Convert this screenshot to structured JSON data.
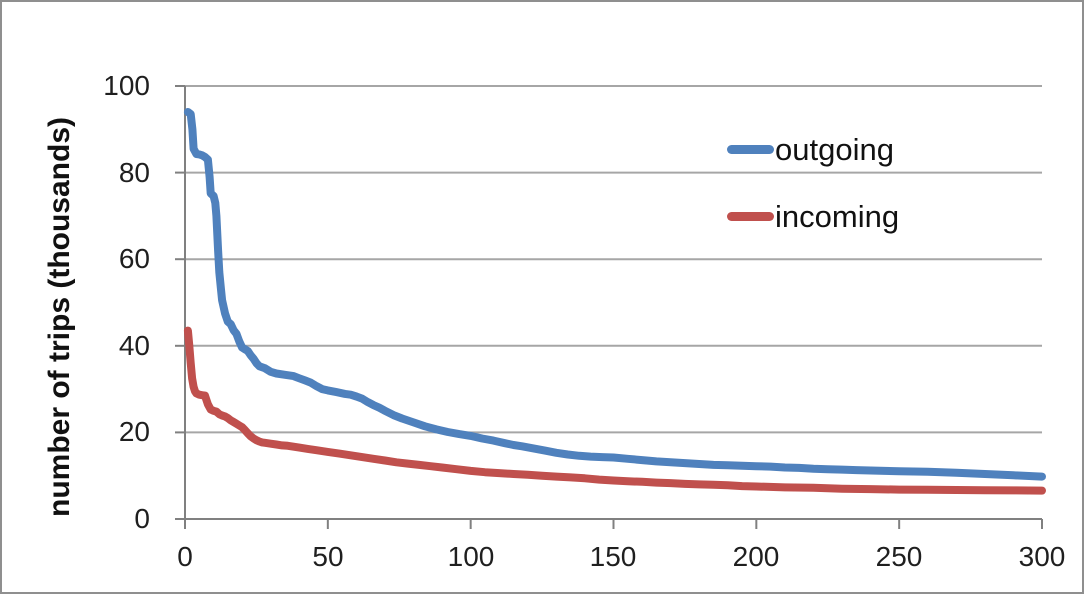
{
  "chart_data": {
    "type": "line",
    "title": "",
    "xlabel": "",
    "ylabel": "number of trips (thousands)",
    "xlim": [
      0,
      300
    ],
    "ylim": [
      0,
      100
    ],
    "x_ticks": [
      0,
      50,
      100,
      150,
      200,
      250,
      300
    ],
    "y_ticks": [
      0,
      20,
      40,
      60,
      80,
      100
    ],
    "x_tick_labels": [
      "0",
      "50",
      "100",
      "150",
      "200",
      "250",
      "300"
    ],
    "y_tick_labels_top_to_bottom": [
      "100",
      "80",
      "60",
      "40",
      "20",
      "0"
    ],
    "grid": "horizontal-only",
    "grid_color": "#a6a6a6",
    "axis_color": "#808080",
    "legend_position": "inside-upper-right",
    "series": [
      {
        "name": "outgoing",
        "color": "#4F81BD",
        "points": [
          [
            1,
            94
          ],
          [
            2,
            93.5
          ],
          [
            2.6,
            90
          ],
          [
            3,
            85.5
          ],
          [
            4,
            84.3
          ],
          [
            5,
            84.2
          ],
          [
            6,
            84
          ],
          [
            7,
            83.6
          ],
          [
            8,
            83
          ],
          [
            8.6,
            79
          ],
          [
            9,
            75.2
          ],
          [
            10,
            74.6
          ],
          [
            10.6,
            73
          ],
          [
            11,
            70
          ],
          [
            11.6,
            62
          ],
          [
            12,
            57
          ],
          [
            12.6,
            53
          ],
          [
            13,
            50.5
          ],
          [
            14,
            47.5
          ],
          [
            15,
            45.6
          ],
          [
            16,
            45
          ],
          [
            17,
            43.6
          ],
          [
            18,
            42.8
          ],
          [
            19,
            41
          ],
          [
            20,
            39.6
          ],
          [
            21,
            39.2
          ],
          [
            22,
            38.8
          ],
          [
            23,
            37.8
          ],
          [
            24,
            37
          ],
          [
            25,
            36
          ],
          [
            26,
            35.3
          ],
          [
            28,
            34.8
          ],
          [
            30,
            34
          ],
          [
            32,
            33.6
          ],
          [
            35,
            33.3
          ],
          [
            38,
            33
          ],
          [
            40,
            32.5
          ],
          [
            42,
            32
          ],
          [
            44,
            31.5
          ],
          [
            46,
            30.7
          ],
          [
            48,
            30
          ],
          [
            50,
            29.7
          ],
          [
            53,
            29.3
          ],
          [
            56,
            28.9
          ],
          [
            58,
            28.7
          ],
          [
            60,
            28.3
          ],
          [
            62,
            27.8
          ],
          [
            64,
            27
          ],
          [
            66,
            26.3
          ],
          [
            68,
            25.7
          ],
          [
            70,
            25
          ],
          [
            73,
            24
          ],
          [
            76,
            23.2
          ],
          [
            80,
            22.3
          ],
          [
            84,
            21.4
          ],
          [
            88,
            20.7
          ],
          [
            92,
            20.1
          ],
          [
            96,
            19.6
          ],
          [
            100,
            19.2
          ],
          [
            104,
            18.6
          ],
          [
            108,
            18.1
          ],
          [
            112,
            17.5
          ],
          [
            115,
            17.1
          ],
          [
            118,
            16.8
          ],
          [
            122,
            16.3
          ],
          [
            126,
            15.8
          ],
          [
            130,
            15.3
          ],
          [
            134,
            14.9
          ],
          [
            138,
            14.6
          ],
          [
            142,
            14.4
          ],
          [
            146,
            14.3
          ],
          [
            150,
            14.2
          ],
          [
            155,
            13.9
          ],
          [
            160,
            13.6
          ],
          [
            165,
            13.3
          ],
          [
            170,
            13.1
          ],
          [
            175,
            12.9
          ],
          [
            180,
            12.7
          ],
          [
            185,
            12.5
          ],
          [
            190,
            12.4
          ],
          [
            195,
            12.3
          ],
          [
            200,
            12.2
          ],
          [
            205,
            12.1
          ],
          [
            210,
            11.9
          ],
          [
            215,
            11.8
          ],
          [
            220,
            11.6
          ],
          [
            225,
            11.5
          ],
          [
            230,
            11.4
          ],
          [
            235,
            11.3
          ],
          [
            240,
            11.2
          ],
          [
            245,
            11.1
          ],
          [
            250,
            11.05
          ],
          [
            260,
            10.9
          ],
          [
            270,
            10.7
          ],
          [
            280,
            10.4
          ],
          [
            290,
            10.1
          ],
          [
            300,
            9.8
          ]
        ]
      },
      {
        "name": "incoming",
        "color": "#C0504D",
        "points": [
          [
            1,
            43.5
          ],
          [
            1.5,
            40
          ],
          [
            2,
            36
          ],
          [
            2.5,
            32.5
          ],
          [
            3,
            30.5
          ],
          [
            3.5,
            29.5
          ],
          [
            4,
            29
          ],
          [
            5,
            28.7
          ],
          [
            6,
            28.6
          ],
          [
            7,
            28.5
          ],
          [
            7.5,
            27.5
          ],
          [
            8,
            26.5
          ],
          [
            9,
            25.3
          ],
          [
            10,
            25
          ],
          [
            11,
            24.8
          ],
          [
            12,
            24.2
          ],
          [
            13,
            23.9
          ],
          [
            14,
            23.7
          ],
          [
            15,
            23.3
          ],
          [
            16,
            22.8
          ],
          [
            17,
            22.4
          ],
          [
            18,
            22
          ],
          [
            19,
            21.6
          ],
          [
            20,
            21.2
          ],
          [
            21,
            20.5
          ],
          [
            22,
            19.8
          ],
          [
            23,
            19.1
          ],
          [
            24,
            18.6
          ],
          [
            25,
            18.2
          ],
          [
            26,
            17.9
          ],
          [
            27,
            17.7
          ],
          [
            28,
            17.6
          ],
          [
            30,
            17.4
          ],
          [
            32,
            17.2
          ],
          [
            34,
            17
          ],
          [
            36,
            16.9
          ],
          [
            38,
            16.7
          ],
          [
            40,
            16.5
          ],
          [
            43,
            16.2
          ],
          [
            46,
            15.9
          ],
          [
            50,
            15.5
          ],
          [
            54,
            15.1
          ],
          [
            58,
            14.7
          ],
          [
            62,
            14.3
          ],
          [
            66,
            13.9
          ],
          [
            70,
            13.5
          ],
          [
            74,
            13.1
          ],
          [
            78,
            12.8
          ],
          [
            82,
            12.5
          ],
          [
            86,
            12.2
          ],
          [
            90,
            11.9
          ],
          [
            95,
            11.5
          ],
          [
            100,
            11.1
          ],
          [
            105,
            10.8
          ],
          [
            110,
            10.6
          ],
          [
            115,
            10.4
          ],
          [
            120,
            10.2
          ],
          [
            125,
            10
          ],
          [
            130,
            9.8
          ],
          [
            135,
            9.6
          ],
          [
            140,
            9.4
          ],
          [
            145,
            9.1
          ],
          [
            150,
            8.9
          ],
          [
            155,
            8.7
          ],
          [
            160,
            8.6
          ],
          [
            165,
            8.4
          ],
          [
            170,
            8.3
          ],
          [
            175,
            8.1
          ],
          [
            180,
            8
          ],
          [
            185,
            7.9
          ],
          [
            190,
            7.8
          ],
          [
            195,
            7.6
          ],
          [
            200,
            7.5
          ],
          [
            210,
            7.3
          ],
          [
            220,
            7.2
          ],
          [
            230,
            7
          ],
          [
            240,
            6.9
          ],
          [
            250,
            6.8
          ],
          [
            260,
            6.75
          ],
          [
            270,
            6.7
          ],
          [
            280,
            6.65
          ],
          [
            290,
            6.6
          ],
          [
            300,
            6.55
          ]
        ]
      }
    ]
  }
}
